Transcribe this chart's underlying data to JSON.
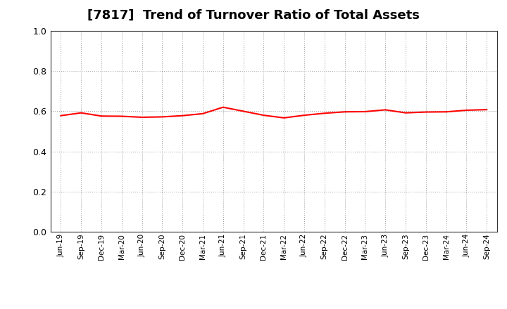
{
  "title": "[7817]  Trend of Turnover Ratio of Total Assets",
  "title_fontsize": 13,
  "line_color": "#FF0000",
  "line_width": 1.5,
  "background_color": "#FFFFFF",
  "grid_color": "#999999",
  "ylim": [
    0.0,
    1.0
  ],
  "yticks": [
    0.0,
    0.2,
    0.4,
    0.6,
    0.8,
    1.0
  ],
  "x_labels": [
    "Jun-19",
    "Sep-19",
    "Dec-19",
    "Mar-20",
    "Jun-20",
    "Sep-20",
    "Dec-20",
    "Mar-21",
    "Jun-21",
    "Sep-21",
    "Dec-21",
    "Mar-22",
    "Jun-22",
    "Sep-22",
    "Dec-22",
    "Mar-23",
    "Jun-23",
    "Sep-23",
    "Dec-23",
    "Mar-24",
    "Jun-24",
    "Sep-24"
  ],
  "values": [
    0.578,
    0.592,
    0.576,
    0.575,
    0.57,
    0.572,
    0.578,
    0.588,
    0.62,
    0.6,
    0.58,
    0.567,
    0.58,
    0.59,
    0.597,
    0.598,
    0.607,
    0.592,
    0.596,
    0.597,
    0.605,
    0.608
  ]
}
